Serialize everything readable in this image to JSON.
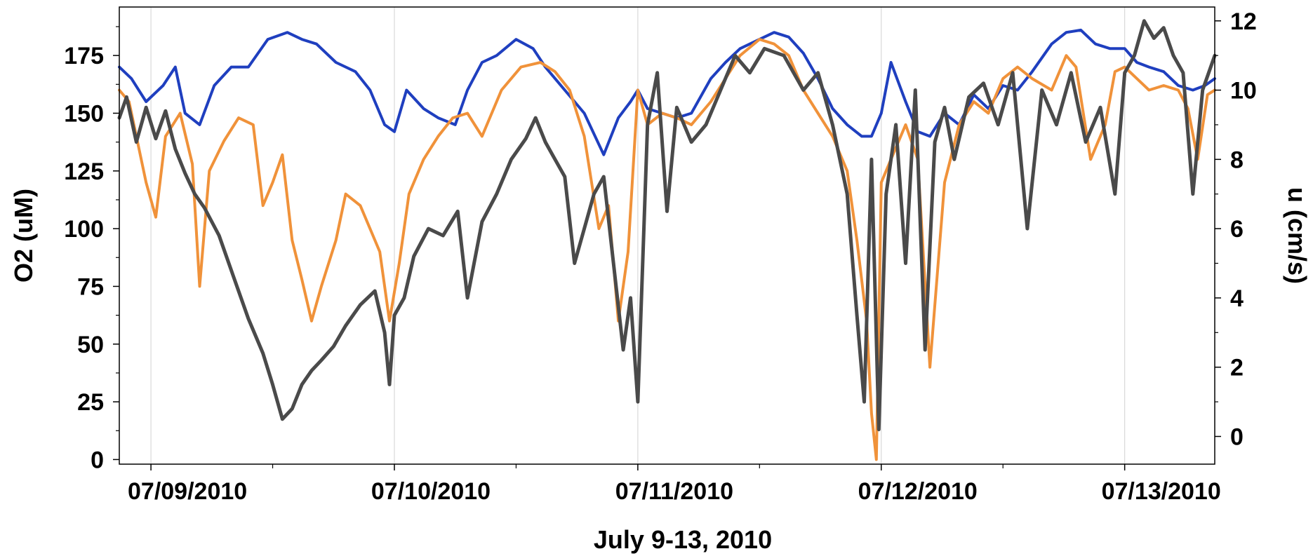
{
  "chart_data": {
    "type": "line",
    "title": "",
    "xlabel": "July 9-13, 2010",
    "ylabel": "O2 (uM)",
    "y2label": "u (cm/s)",
    "x_tick_labels": [
      "07/09/2010",
      "07/10/2010",
      "07/11/2010",
      "07/12/2010",
      "07/13/2010"
    ],
    "x_tick_days": [
      0,
      1,
      2,
      3,
      4
    ],
    "xlim_days": [
      -0.13,
      4.37
    ],
    "ylim": [
      -2,
      196
    ],
    "y_ticks": [
      0,
      25,
      50,
      75,
      100,
      125,
      150,
      175
    ],
    "y2lim": [
      -0.8,
      12.4
    ],
    "y2_ticks": [
      0,
      2,
      4,
      6,
      8,
      10,
      12
    ],
    "grid": "vertical at date ticks",
    "legend": "none",
    "series": [
      {
        "color": "#1f3fbf",
        "axis": "left",
        "x_days": [
          -0.13,
          -0.08,
          -0.02,
          0.05,
          0.1,
          0.14,
          0.2,
          0.26,
          0.33,
          0.4,
          0.48,
          0.56,
          0.62,
          0.68,
          0.76,
          0.84,
          0.9,
          0.96,
          1.0,
          1.05,
          1.12,
          1.18,
          1.25,
          1.3,
          1.36,
          1.42,
          1.5,
          1.57,
          1.62,
          1.7,
          1.78,
          1.86,
          1.92,
          1.97,
          2.0,
          2.04,
          2.1,
          2.16,
          2.22,
          2.3,
          2.36,
          2.42,
          2.5,
          2.56,
          2.62,
          2.68,
          2.74,
          2.8,
          2.86,
          2.92,
          2.96,
          3.0,
          3.04,
          3.1,
          3.15,
          3.2,
          3.26,
          3.32,
          3.38,
          3.44,
          3.5,
          3.56,
          3.62,
          3.7,
          3.76,
          3.82,
          3.88,
          3.94,
          4.0,
          4.05,
          4.1,
          4.16,
          4.22,
          4.28,
          4.33,
          4.37
        ],
        "y": [
          170,
          165,
          155,
          162,
          170,
          150,
          145,
          162,
          170,
          170,
          182,
          185,
          182,
          180,
          172,
          168,
          160,
          145,
          142,
          160,
          152,
          148,
          145,
          160,
          172,
          175,
          182,
          178,
          170,
          160,
          150,
          132,
          148,
          155,
          160,
          152,
          150,
          148,
          150,
          165,
          172,
          178,
          182,
          185,
          183,
          176,
          165,
          152,
          145,
          140,
          140,
          150,
          172,
          155,
          142,
          140,
          150,
          145,
          158,
          152,
          162,
          160,
          168,
          180,
          185,
          186,
          180,
          178,
          178,
          172,
          170,
          168,
          162,
          160,
          162,
          165
        ]
      },
      {
        "color": "#f0923a",
        "axis": "left",
        "x_days": [
          -0.13,
          -0.09,
          -0.06,
          -0.02,
          0.02,
          0.06,
          0.12,
          0.17,
          0.2,
          0.24,
          0.3,
          0.36,
          0.42,
          0.46,
          0.5,
          0.54,
          0.58,
          0.62,
          0.66,
          0.7,
          0.76,
          0.8,
          0.86,
          0.9,
          0.94,
          0.98,
          1.02,
          1.06,
          1.12,
          1.18,
          1.24,
          1.3,
          1.36,
          1.44,
          1.52,
          1.6,
          1.66,
          1.72,
          1.78,
          1.84,
          1.88,
          1.92,
          1.96,
          2.0,
          2.04,
          2.1,
          2.16,
          2.22,
          2.3,
          2.36,
          2.42,
          2.5,
          2.56,
          2.62,
          2.68,
          2.74,
          2.8,
          2.86,
          2.9,
          2.94,
          2.96,
          2.98,
          3.0,
          3.04,
          3.1,
          3.15,
          3.2,
          3.26,
          3.32,
          3.38,
          3.44,
          3.5,
          3.56,
          3.62,
          3.7,
          3.76,
          3.8,
          3.86,
          3.92,
          3.96,
          4.0,
          4.05,
          4.1,
          4.16,
          4.22,
          4.26,
          4.3,
          4.34,
          4.37
        ],
        "y": [
          160,
          155,
          140,
          120,
          105,
          140,
          150,
          128,
          75,
          125,
          138,
          148,
          145,
          110,
          120,
          132,
          95,
          78,
          60,
          75,
          95,
          115,
          110,
          100,
          90,
          60,
          85,
          115,
          130,
          140,
          148,
          150,
          140,
          160,
          170,
          172,
          168,
          160,
          140,
          100,
          110,
          60,
          90,
          160,
          145,
          150,
          148,
          145,
          155,
          165,
          175,
          182,
          180,
          175,
          160,
          150,
          140,
          125,
          95,
          60,
          20,
          0,
          120,
          130,
          145,
          130,
          40,
          120,
          145,
          155,
          150,
          165,
          170,
          165,
          160,
          175,
          170,
          130,
          145,
          168,
          170,
          165,
          160,
          162,
          160,
          152,
          130,
          158,
          160
        ]
      },
      {
        "color": "#4a4a4a",
        "axis": "right",
        "x_days": [
          -0.13,
          -0.1,
          -0.06,
          -0.02,
          0.02,
          0.06,
          0.1,
          0.14,
          0.18,
          0.22,
          0.28,
          0.34,
          0.4,
          0.46,
          0.5,
          0.54,
          0.58,
          0.62,
          0.66,
          0.7,
          0.75,
          0.8,
          0.86,
          0.92,
          0.96,
          0.98,
          1.0,
          1.04,
          1.08,
          1.14,
          1.2,
          1.26,
          1.3,
          1.36,
          1.42,
          1.48,
          1.54,
          1.58,
          1.62,
          1.66,
          1.7,
          1.74,
          1.78,
          1.82,
          1.86,
          1.9,
          1.94,
          1.97,
          2.0,
          2.04,
          2.08,
          2.12,
          2.16,
          2.22,
          2.28,
          2.34,
          2.4,
          2.46,
          2.52,
          2.6,
          2.68,
          2.74,
          2.8,
          2.86,
          2.9,
          2.93,
          2.96,
          2.99,
          3.02,
          3.06,
          3.1,
          3.14,
          3.18,
          3.22,
          3.26,
          3.3,
          3.36,
          3.42,
          3.48,
          3.54,
          3.6,
          3.66,
          3.72,
          3.78,
          3.84,
          3.9,
          3.96,
          4.0,
          4.04,
          4.08,
          4.12,
          4.16,
          4.2,
          4.24,
          4.28,
          4.32,
          4.37
        ],
        "y": [
          9.2,
          9.8,
          8.5,
          9.5,
          8.6,
          9.4,
          8.3,
          7.6,
          7.0,
          6.6,
          5.8,
          4.6,
          3.4,
          2.4,
          1.5,
          0.5,
          0.8,
          1.5,
          1.9,
          2.2,
          2.6,
          3.2,
          3.8,
          4.2,
          3.0,
          1.5,
          3.5,
          4.0,
          5.2,
          6.0,
          5.8,
          6.5,
          4.0,
          6.2,
          7.0,
          8.0,
          8.6,
          9.2,
          8.5,
          8.0,
          7.5,
          5.0,
          6.0,
          7.0,
          7.5,
          5.0,
          2.5,
          4.0,
          1.0,
          9.0,
          10.5,
          6.5,
          9.5,
          8.5,
          9.0,
          10.0,
          11.0,
          10.5,
          11.2,
          11.0,
          10.0,
          10.5,
          9.0,
          7.0,
          3.5,
          1.0,
          8.0,
          0.2,
          7.0,
          9.0,
          5.0,
          10.0,
          2.5,
          8.5,
          9.5,
          8.0,
          9.8,
          10.2,
          9.0,
          10.5,
          6.0,
          10.0,
          9.0,
          10.5,
          8.5,
          9.5,
          7.0,
          10.5,
          11.0,
          12.0,
          11.5,
          11.8,
          11.0,
          10.5,
          7.0,
          10.0,
          11.0
        ]
      }
    ]
  }
}
